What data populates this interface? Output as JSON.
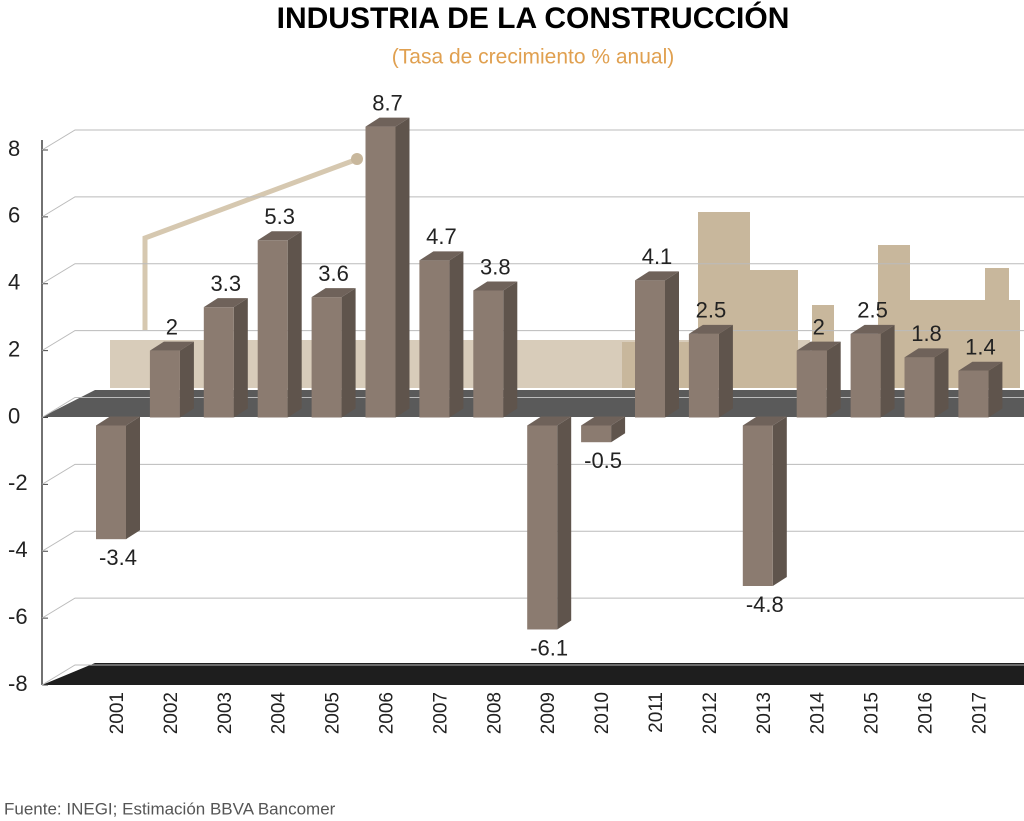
{
  "chart_data": {
    "type": "bar",
    "title": "INDUSTRIA DE LA CONSTRUCCIÓN",
    "subtitle": "(Tasa de crecimiento % anual)",
    "categories": [
      "2001",
      "2002",
      "2003",
      "2004",
      "2005",
      "2006",
      "2007",
      "2008",
      "2009",
      "2010",
      "2011",
      "2012",
      "2013",
      "2014",
      "2015",
      "2016",
      "2017"
    ],
    "values": [
      -3.4,
      2,
      3.3,
      5.3,
      3.6,
      8.7,
      4.7,
      3.8,
      -6.1,
      -0.5,
      4.1,
      2.5,
      -4.8,
      2,
      2.5,
      1.8,
      1.4
    ],
    "color": "#8b7b70",
    "ylim": [
      -8,
      8
    ],
    "yticks": [
      -8,
      -6,
      -4,
      -2,
      0,
      2,
      4,
      6,
      8
    ],
    "grid": true,
    "source": "Fuente: INEGI; Estimación BBVA Bancomer"
  }
}
